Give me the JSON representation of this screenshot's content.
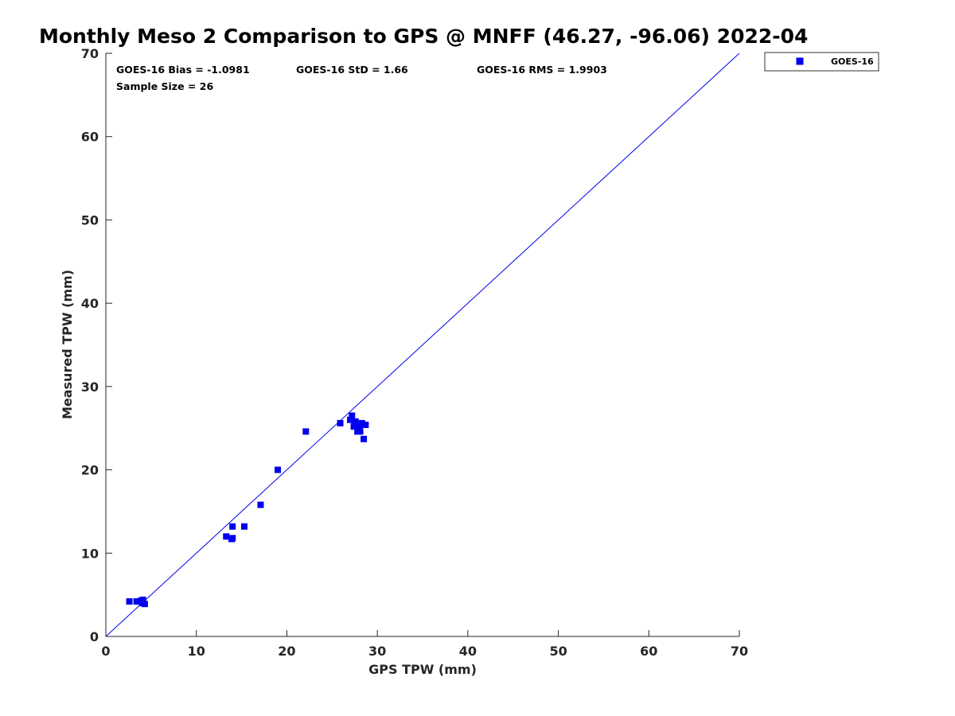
{
  "chart_data": {
    "type": "scatter",
    "title": "Monthly Meso 2 Comparison to GPS @ MNFF (46.27, -96.06) 2022-04",
    "xlabel": "GPS TPW (mm)",
    "ylabel": "Measured TPW (mm)",
    "xlim": [
      0,
      70
    ],
    "ylim": [
      0,
      70
    ],
    "xticks": [
      "0",
      "10",
      "20",
      "30",
      "40",
      "50",
      "60",
      "70"
    ],
    "yticks": [
      "0",
      "10",
      "20",
      "30",
      "40",
      "50",
      "60",
      "70"
    ],
    "grid": false,
    "legend_position": "top-right outside",
    "series": [
      {
        "name": "GOES-16",
        "color": "#0000ee",
        "marker": "square",
        "points": [
          [
            2.6,
            4.2
          ],
          [
            3.4,
            4.2
          ],
          [
            3.9,
            4.3
          ],
          [
            4.0,
            4.0
          ],
          [
            4.1,
            4.4
          ],
          [
            4.3,
            3.9
          ],
          [
            13.3,
            12.0
          ],
          [
            13.9,
            11.7
          ],
          [
            14.0,
            13.2
          ],
          [
            14.0,
            11.8
          ],
          [
            15.3,
            13.2
          ],
          [
            17.1,
            15.8
          ],
          [
            19.0,
            20.0
          ],
          [
            22.1,
            24.6
          ],
          [
            25.9,
            25.6
          ],
          [
            27.0,
            26.0
          ],
          [
            27.2,
            26.5
          ],
          [
            27.4,
            25.2
          ],
          [
            27.6,
            25.8
          ],
          [
            27.8,
            24.6
          ],
          [
            28.0,
            25.2
          ],
          [
            28.1,
            24.6
          ],
          [
            28.3,
            25.6
          ],
          [
            28.5,
            23.7
          ],
          [
            28.7,
            25.4
          ],
          [
            27.5,
            25.5
          ]
        ]
      }
    ],
    "reference_line": {
      "type": "one-to-one",
      "color": "#0000ee"
    },
    "annotations": {
      "bias": "GOES-16 Bias = -1.0981",
      "std": "GOES-16 StD = 1.66",
      "rms": "GOES-16 RMS = 1.9903",
      "sample_size": "Sample Size = 26"
    }
  }
}
